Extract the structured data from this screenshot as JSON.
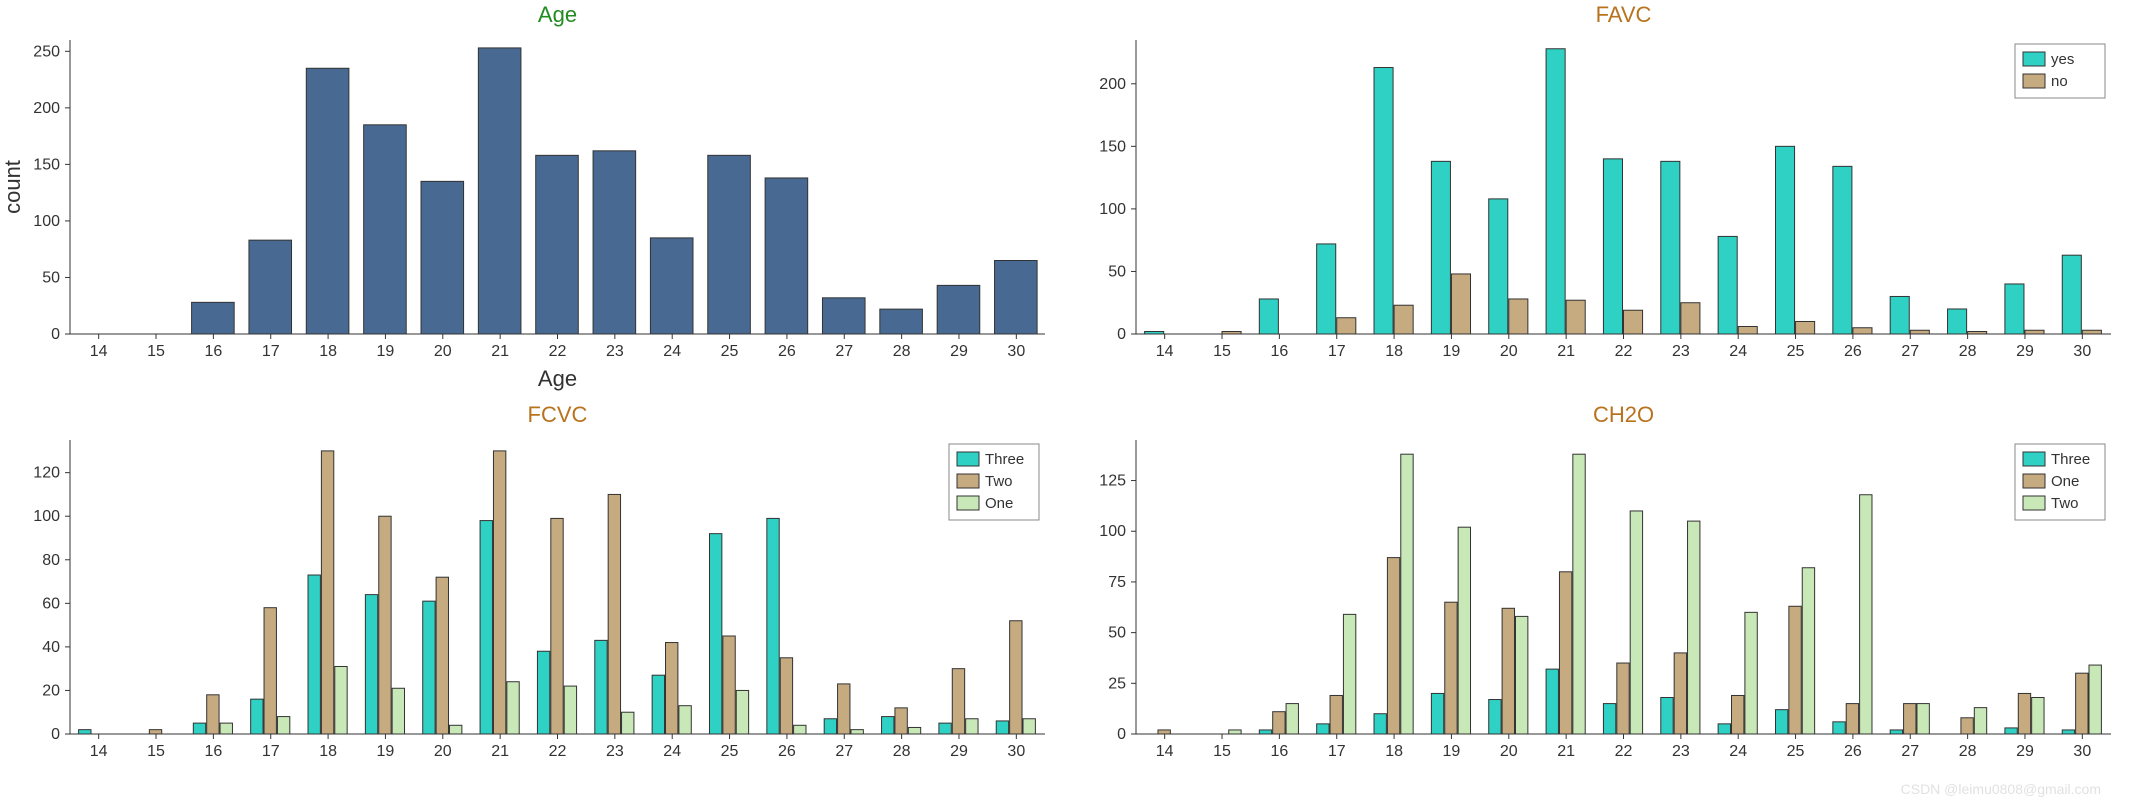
{
  "categories": [
    14,
    15,
    16,
    17,
    18,
    19,
    20,
    21,
    22,
    23,
    24,
    25,
    26,
    27,
    28,
    29,
    30
  ],
  "colors": {
    "blue": "#486a92",
    "teal": "#2ed1c4",
    "tan": "#c6aa80",
    "pale": "#c8e8b8",
    "grid": "#e6e6e6",
    "axis": "#333333"
  },
  "watermark": "CSDN @leimu0808@gmail.com",
  "panels": {
    "age": {
      "title": "Age",
      "title_class": "title-green",
      "xlabel": "Age",
      "ylabel": "count",
      "ylim": [
        0,
        260
      ],
      "yticks": [
        0,
        50,
        100,
        150,
        200,
        250
      ],
      "series": [
        {
          "key": "count",
          "color": "blue",
          "values": {
            "16": 28,
            "17": 83,
            "18": 235,
            "19": 185,
            "20": 135,
            "21": 253,
            "22": 158,
            "23": 162,
            "24": 85,
            "25": 158,
            "26": 138,
            "27": 32,
            "28": 22,
            "29": 43,
            "30": 65
          }
        }
      ],
      "legend": null
    },
    "favc": {
      "title": "FAVC",
      "title_class": "title-brown",
      "xlabel": "",
      "ylabel": "",
      "ylim": [
        0,
        235
      ],
      "yticks": [
        0,
        50,
        100,
        150,
        200
      ],
      "series": [
        {
          "key": "yes",
          "color": "teal",
          "values": {
            "14": 2,
            "16": 28,
            "17": 72,
            "18": 213,
            "19": 138,
            "20": 108,
            "21": 228,
            "22": 140,
            "23": 138,
            "24": 78,
            "25": 150,
            "26": 134,
            "27": 30,
            "28": 20,
            "29": 40,
            "30": 63
          }
        },
        {
          "key": "no",
          "color": "tan",
          "values": {
            "15": 2,
            "17": 13,
            "18": 23,
            "19": 48,
            "20": 28,
            "21": 27,
            "22": 19,
            "23": 25,
            "24": 6,
            "25": 10,
            "26": 5,
            "27": 3,
            "28": 2,
            "29": 3,
            "30": 3
          }
        }
      ],
      "legend": {
        "items": [
          {
            "label": "yes",
            "color": "teal"
          },
          {
            "label": "no",
            "color": "tan"
          }
        ]
      }
    },
    "fcvc": {
      "title": "FCVC",
      "title_class": "title-brown",
      "xlabel": "",
      "ylabel": "",
      "ylim": [
        0,
        135
      ],
      "yticks": [
        0,
        20,
        40,
        60,
        80,
        100,
        120
      ],
      "series": [
        {
          "key": "Three",
          "color": "teal",
          "values": {
            "14": 2,
            "16": 5,
            "17": 16,
            "18": 73,
            "19": 64,
            "20": 61,
            "21": 98,
            "22": 38,
            "23": 43,
            "24": 27,
            "25": 92,
            "26": 99,
            "27": 7,
            "28": 8,
            "29": 5,
            "30": 6
          }
        },
        {
          "key": "Two",
          "color": "tan",
          "values": {
            "15": 2,
            "16": 18,
            "17": 58,
            "18": 130,
            "19": 100,
            "20": 72,
            "21": 130,
            "22": 99,
            "23": 110,
            "24": 42,
            "25": 45,
            "26": 35,
            "27": 23,
            "28": 12,
            "29": 30,
            "30": 52
          }
        },
        {
          "key": "One",
          "color": "pale",
          "values": {
            "16": 5,
            "17": 8,
            "18": 31,
            "19": 21,
            "20": 4,
            "21": 24,
            "22": 22,
            "23": 10,
            "24": 13,
            "25": 20,
            "26": 4,
            "27": 2,
            "28": 3,
            "29": 7,
            "30": 7
          }
        }
      ],
      "legend": {
        "items": [
          {
            "label": "Three",
            "color": "teal"
          },
          {
            "label": "Two",
            "color": "tan"
          },
          {
            "label": "One",
            "color": "pale"
          }
        ]
      }
    },
    "ch2o": {
      "title": "CH2O",
      "title_class": "title-brown",
      "xlabel": "",
      "ylabel": "",
      "ylim": [
        0,
        145
      ],
      "yticks": [
        0,
        25,
        50,
        75,
        100,
        125
      ],
      "series": [
        {
          "key": "Three",
          "color": "teal",
          "values": {
            "16": 2,
            "17": 5,
            "18": 10,
            "19": 20,
            "20": 17,
            "21": 32,
            "22": 15,
            "23": 18,
            "24": 5,
            "25": 12,
            "26": 6,
            "27": 2,
            "29": 3,
            "30": 2
          }
        },
        {
          "key": "One",
          "color": "tan",
          "values": {
            "14": 2,
            "16": 11,
            "17": 19,
            "18": 87,
            "19": 65,
            "20": 62,
            "21": 80,
            "22": 35,
            "23": 40,
            "24": 19,
            "25": 63,
            "26": 15,
            "27": 15,
            "28": 8,
            "29": 20,
            "30": 30
          }
        },
        {
          "key": "Two",
          "color": "pale",
          "values": {
            "15": 2,
            "16": 15,
            "17": 59,
            "18": 138,
            "19": 102,
            "20": 58,
            "21": 138,
            "22": 110,
            "23": 105,
            "24": 60,
            "25": 82,
            "26": 118,
            "27": 15,
            "28": 13,
            "29": 18,
            "30": 34
          }
        }
      ],
      "legend": {
        "items": [
          {
            "label": "Three",
            "color": "teal"
          },
          {
            "label": "One",
            "color": "tan"
          },
          {
            "label": "Two",
            "color": "pale"
          }
        ]
      }
    }
  }
}
